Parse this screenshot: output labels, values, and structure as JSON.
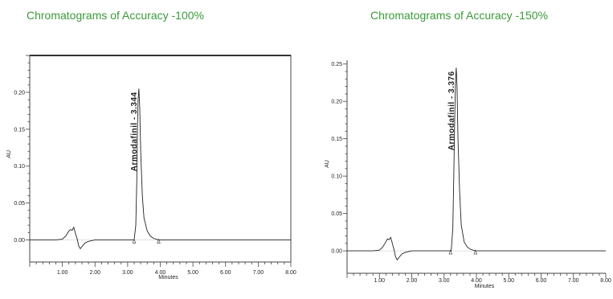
{
  "captions": {
    "left": "Chromatograms of Accuracy -100%",
    "right": "Chromatograms of Accuracy -150%"
  },
  "chart_data": [
    {
      "type": "line",
      "title": "Chromatograms of Accuracy -100%",
      "xlabel": "Minutes",
      "ylabel": "AU",
      "xlim": [
        0,
        8
      ],
      "ylim": [
        -0.03,
        0.25
      ],
      "x_ticks": [
        1,
        2,
        3,
        4,
        5,
        6,
        7,
        8
      ],
      "x_tick_labels": [
        "1.00",
        "2.00",
        "3.00",
        "4.00",
        "5.00",
        "6.00",
        "7.00",
        "8.00"
      ],
      "y_ticks": [
        0,
        0.05,
        0.1,
        0.15,
        0.2
      ],
      "y_tick_labels": [
        "0.00",
        "0.05",
        "0.10",
        "0.15",
        "0.20"
      ],
      "peak_annotation": {
        "text": "Armodafinil - 3.344",
        "x": 3.344,
        "y": 0.205
      },
      "integration_markers": [
        3.2,
        3.95
      ],
      "series": [
        {
          "x": [
            0.0,
            0.8,
            1.0,
            1.1,
            1.2,
            1.25,
            1.3,
            1.35,
            1.4,
            1.45,
            1.5,
            1.55,
            1.6,
            1.7,
            1.8,
            1.9,
            2.0,
            2.5,
            3.0,
            3.2,
            3.25,
            3.28,
            3.3,
            3.32,
            3.344,
            3.37,
            3.4,
            3.45,
            3.5,
            3.6,
            3.7,
            3.8,
            3.95,
            4.5,
            5.0,
            6.0,
            7.0,
            8.0
          ],
          "y": [
            0.0,
            0.0,
            0.001,
            0.005,
            0.012,
            0.014,
            0.013,
            0.017,
            0.009,
            0.002,
            -0.008,
            -0.012,
            -0.009,
            -0.004,
            -0.002,
            -0.001,
            0.0,
            0.0,
            0.0,
            0.0,
            0.02,
            0.08,
            0.15,
            0.19,
            0.205,
            0.18,
            0.12,
            0.06,
            0.03,
            0.012,
            0.005,
            0.002,
            0.0,
            0.0,
            0.0,
            0.0,
            0.0,
            0.0
          ]
        }
      ]
    },
    {
      "type": "line",
      "title": "Chromatograms of Accuracy -150%",
      "xlabel": "Minutes",
      "ylabel": "AU",
      "xlim": [
        0,
        8
      ],
      "ylim": [
        -0.03,
        0.255
      ],
      "x_ticks": [
        1,
        2,
        3,
        4,
        5,
        6,
        7,
        8
      ],
      "x_tick_labels": [
        "1.00",
        "2.00",
        "3.00",
        "4.00",
        "5.00",
        "6.00",
        "7.00",
        "8.00"
      ],
      "y_ticks": [
        0,
        0.05,
        0.1,
        0.15,
        0.2,
        0.25
      ],
      "y_tick_labels": [
        "0.00",
        "0.05",
        "0.10",
        "0.15",
        "0.20",
        "0.25"
      ],
      "peak_annotation": {
        "text": "Armodafinil - 3.376",
        "x": 3.376,
        "y": 0.245
      },
      "integration_markers": [
        3.2,
        3.97
      ],
      "series": [
        {
          "x": [
            0.0,
            0.8,
            1.0,
            1.1,
            1.2,
            1.25,
            1.3,
            1.35,
            1.4,
            1.45,
            1.5,
            1.55,
            1.6,
            1.7,
            1.8,
            1.9,
            2.0,
            2.5,
            3.0,
            3.22,
            3.27,
            3.3,
            3.33,
            3.355,
            3.376,
            3.4,
            3.43,
            3.48,
            3.53,
            3.62,
            3.72,
            3.82,
            3.97,
            4.5,
            5.0,
            6.0,
            7.0,
            8.0
          ],
          "y": [
            0.0,
            0.0,
            0.001,
            0.005,
            0.012,
            0.016,
            0.015,
            0.018,
            0.01,
            0.002,
            -0.008,
            -0.012,
            -0.009,
            -0.004,
            -0.002,
            -0.001,
            0.0,
            0.0,
            0.0,
            0.0,
            0.03,
            0.1,
            0.18,
            0.23,
            0.245,
            0.22,
            0.15,
            0.08,
            0.035,
            0.012,
            0.005,
            0.002,
            0.0,
            0.0,
            0.0,
            0.0,
            0.0,
            0.0
          ]
        }
      ]
    }
  ]
}
